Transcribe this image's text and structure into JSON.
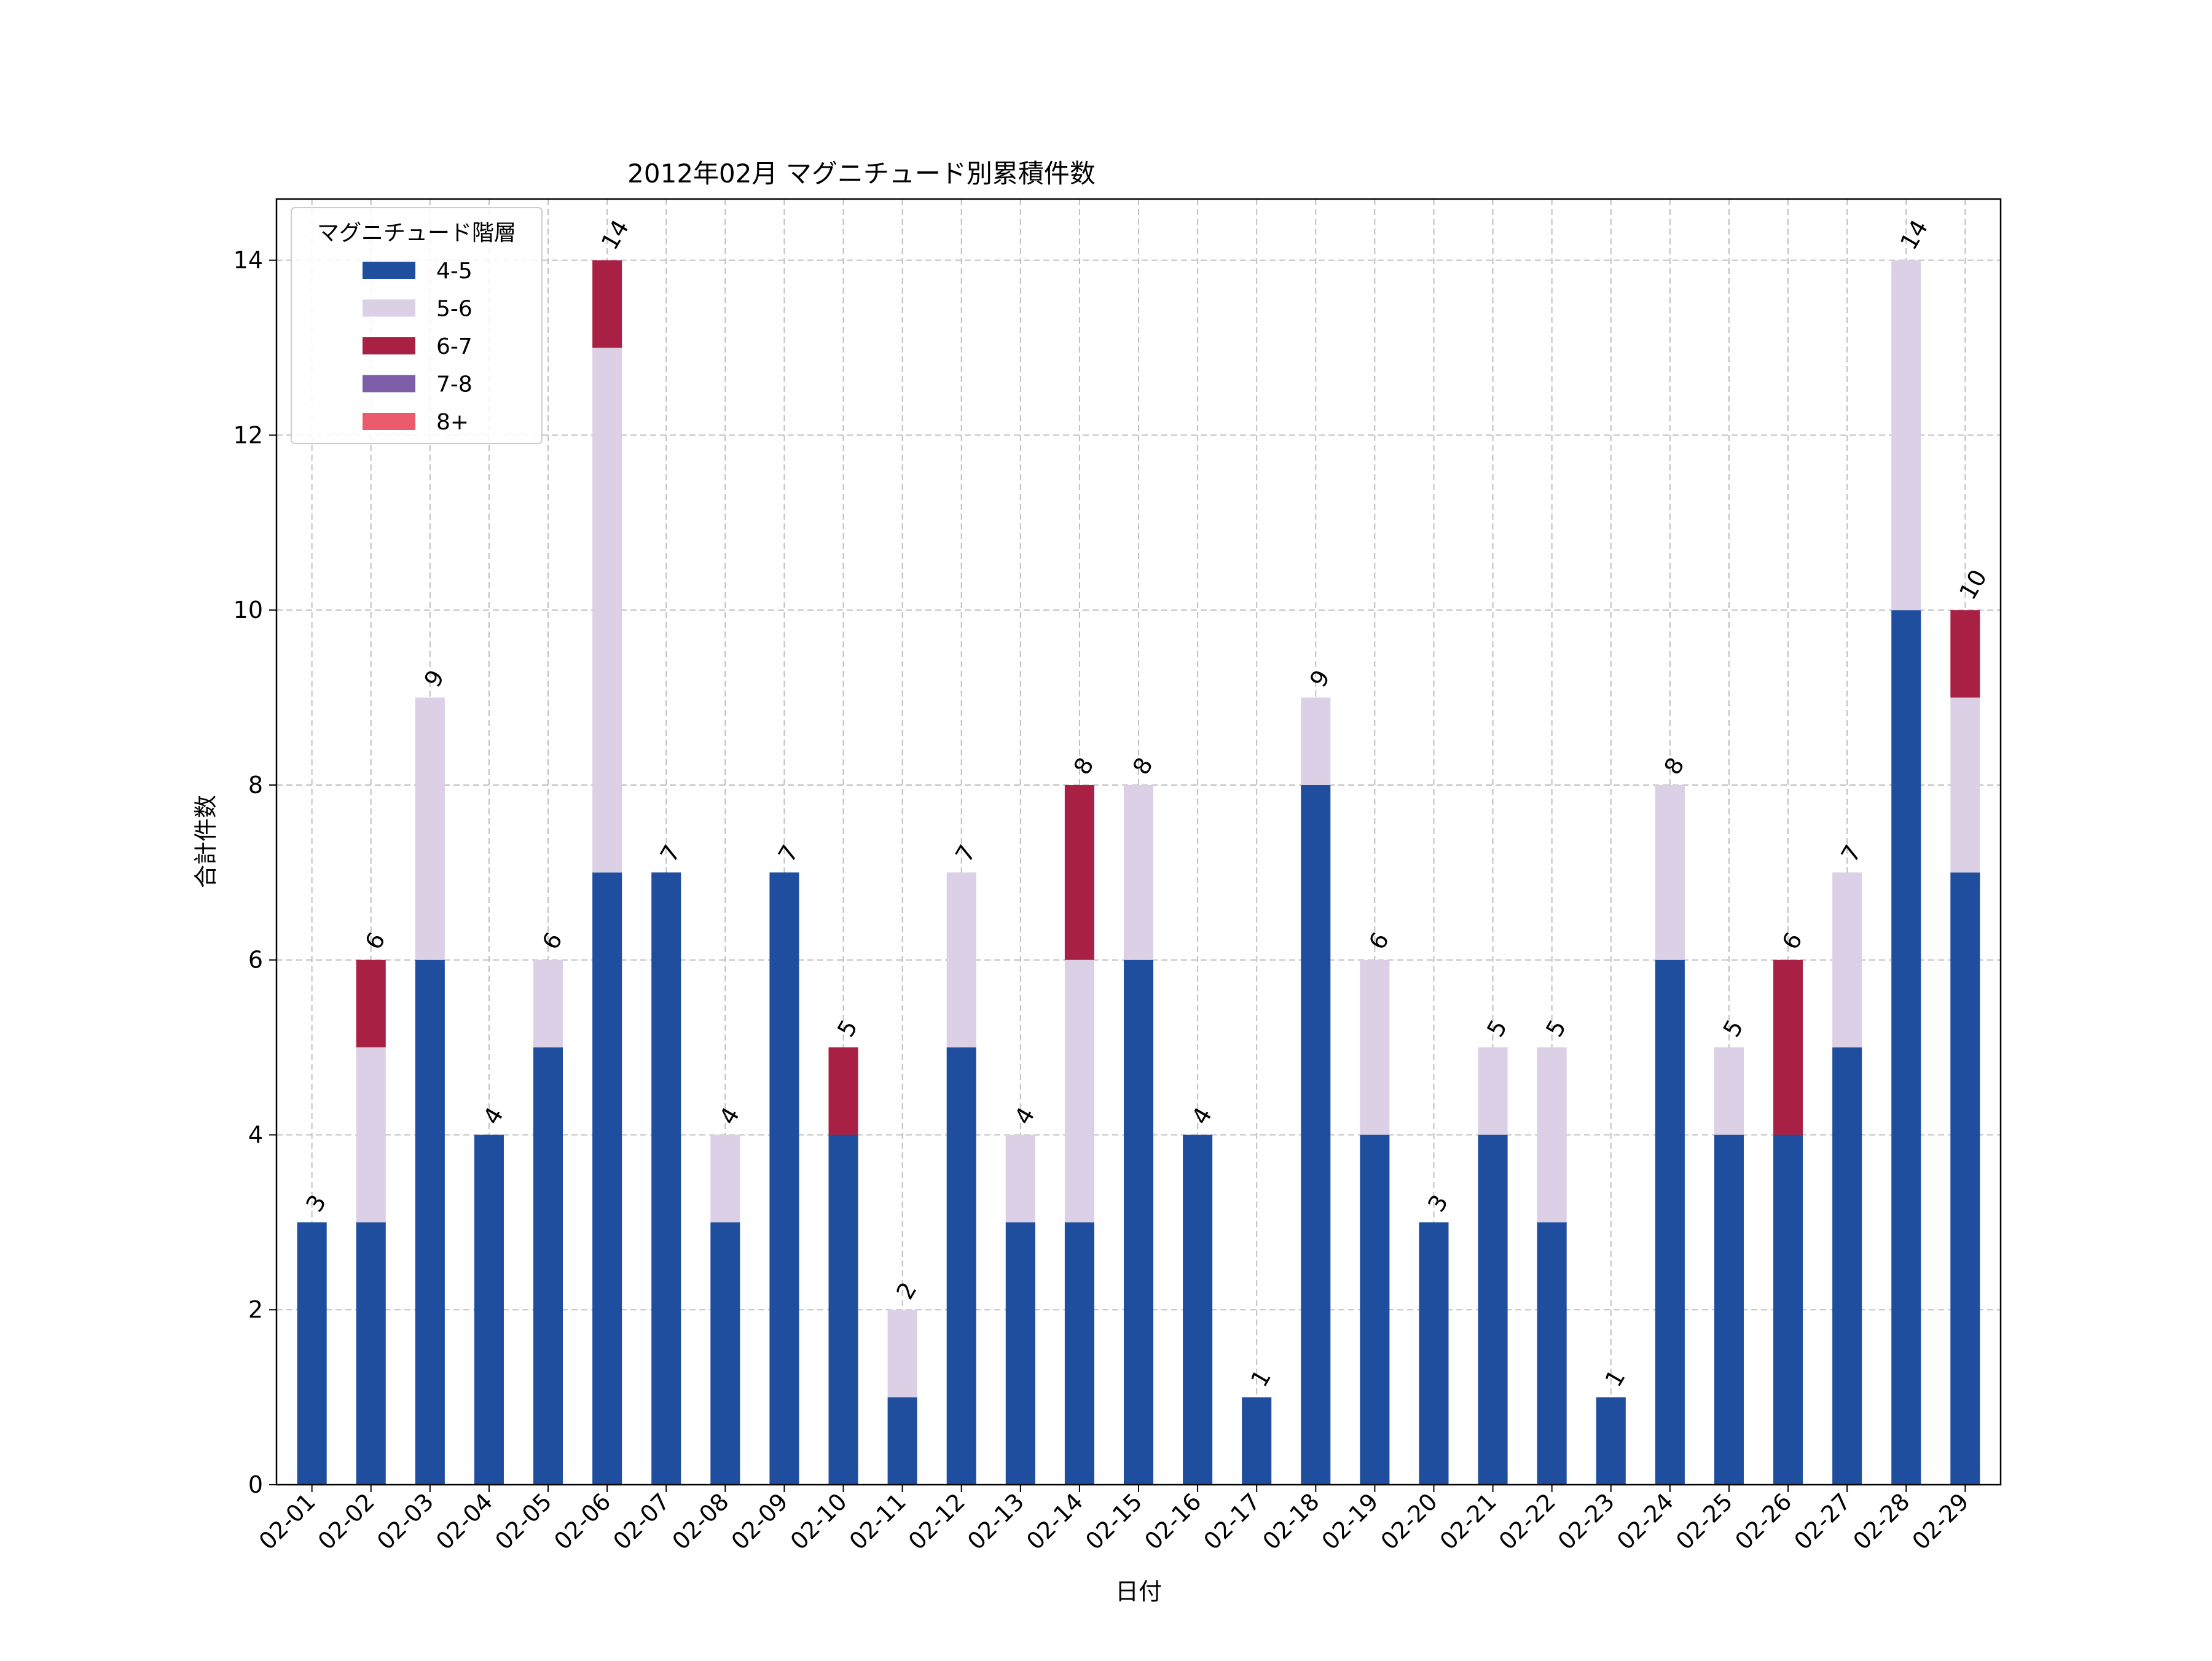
{
  "chart_data": {
    "type": "bar",
    "stacked": true,
    "title": "2012年02月 マグニチュード別累積件数",
    "xlabel": "日付",
    "ylabel": "合計件数",
    "ylim": [
      0,
      14.7
    ],
    "yticks": [
      0,
      2,
      4,
      6,
      8,
      10,
      12,
      14
    ],
    "grid": true,
    "legend": {
      "title": "マグニチュード階層",
      "position": "upper-left"
    },
    "categories": [
      "02-01",
      "02-02",
      "02-03",
      "02-04",
      "02-05",
      "02-06",
      "02-07",
      "02-08",
      "02-09",
      "02-10",
      "02-11",
      "02-12",
      "02-13",
      "02-14",
      "02-15",
      "02-16",
      "02-17",
      "02-18",
      "02-19",
      "02-20",
      "02-21",
      "02-22",
      "02-23",
      "02-24",
      "02-25",
      "02-26",
      "02-27",
      "02-28",
      "02-29"
    ],
    "series": [
      {
        "name": "4-5",
        "color": "#1f4e9e",
        "values": [
          3,
          3,
          6,
          4,
          5,
          7,
          7,
          3,
          7,
          4,
          1,
          5,
          3,
          3,
          6,
          4,
          1,
          8,
          4,
          3,
          4,
          3,
          1,
          6,
          4,
          4,
          5,
          10,
          7
        ]
      },
      {
        "name": "5-6",
        "color": "#dbd0e5",
        "values": [
          0,
          2,
          3,
          0,
          1,
          6,
          0,
          1,
          0,
          0,
          1,
          2,
          1,
          3,
          2,
          0,
          0,
          1,
          2,
          0,
          1,
          2,
          0,
          2,
          1,
          0,
          2,
          4,
          2
        ]
      },
      {
        "name": "6-7",
        "color": "#a82145",
        "values": [
          0,
          1,
          0,
          0,
          0,
          1,
          0,
          0,
          0,
          1,
          0,
          0,
          0,
          2,
          0,
          0,
          0,
          0,
          0,
          0,
          0,
          0,
          0,
          0,
          0,
          2,
          0,
          0,
          1
        ]
      },
      {
        "name": "7-8",
        "color": "#7b5ea7",
        "values": [
          0,
          0,
          0,
          0,
          0,
          0,
          0,
          0,
          0,
          0,
          0,
          0,
          0,
          0,
          0,
          0,
          0,
          0,
          0,
          0,
          0,
          0,
          0,
          0,
          0,
          0,
          0,
          0,
          0
        ]
      },
      {
        "name": "8+",
        "color": "#ea5b6d",
        "values": [
          0,
          0,
          0,
          0,
          0,
          0,
          0,
          0,
          0,
          0,
          0,
          0,
          0,
          0,
          0,
          0,
          0,
          0,
          0,
          0,
          0,
          0,
          0,
          0,
          0,
          0,
          0,
          0,
          0
        ]
      }
    ],
    "totals": [
      3,
      6,
      9,
      4,
      6,
      14,
      7,
      4,
      7,
      5,
      2,
      7,
      4,
      8,
      8,
      4,
      1,
      9,
      6,
      3,
      5,
      5,
      1,
      8,
      5,
      6,
      7,
      14,
      10
    ]
  }
}
